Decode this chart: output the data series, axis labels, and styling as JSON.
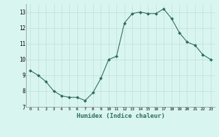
{
  "x": [
    0,
    1,
    2,
    3,
    4,
    5,
    6,
    7,
    8,
    9,
    10,
    11,
    12,
    13,
    14,
    15,
    16,
    17,
    18,
    19,
    20,
    21,
    22,
    23
  ],
  "y": [
    9.3,
    9.0,
    8.6,
    8.0,
    7.7,
    7.6,
    7.6,
    7.4,
    7.9,
    8.8,
    10.0,
    10.2,
    12.3,
    12.9,
    13.0,
    12.9,
    12.9,
    13.2,
    12.6,
    11.7,
    11.1,
    10.9,
    10.3,
    10.0
  ],
  "xlabel": "Humidex (Indice chaleur)",
  "ylim": [
    7,
    13.5
  ],
  "xlim": [
    -0.5,
    23.5
  ],
  "yticks": [
    7,
    8,
    9,
    10,
    11,
    12,
    13
  ],
  "xticks": [
    0,
    1,
    2,
    3,
    4,
    5,
    6,
    7,
    8,
    9,
    10,
    11,
    12,
    13,
    14,
    15,
    16,
    17,
    18,
    19,
    20,
    21,
    22,
    23
  ],
  "line_color": "#2e6b5e",
  "marker": "D",
  "marker_size": 2.0,
  "bg_color": "#d8f5f0",
  "grid_color": "#c0ddd8"
}
